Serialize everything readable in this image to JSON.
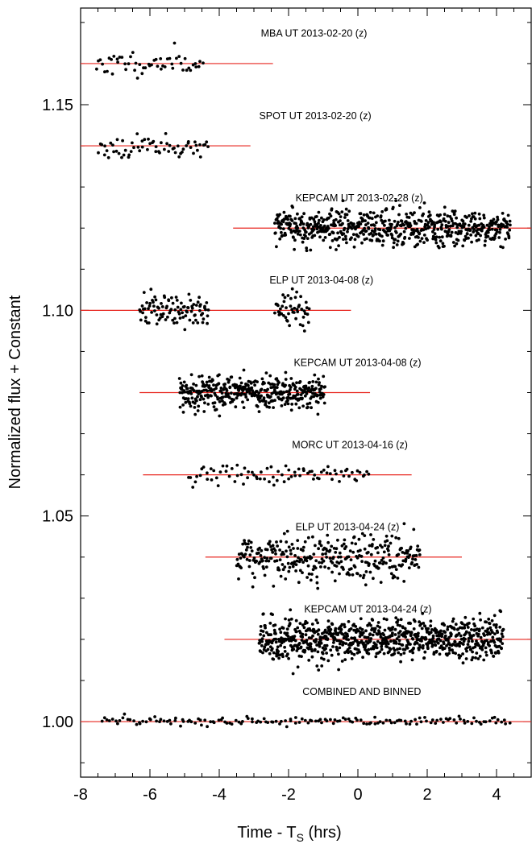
{
  "chart_data": {
    "type": "scatter",
    "xlabel": "Time - T",
    "xlabel_sub": "S",
    "xlabel_suffix": " (hrs)",
    "ylabel": "Normalized flux + Constant",
    "xlim": [
      -8,
      5
    ],
    "ylim": [
      0.9865,
      1.1735
    ],
    "x_ticks": [
      -8,
      -6,
      -4,
      -2,
      0,
      2,
      4
    ],
    "x_tick_labels": [
      "-8",
      "-6",
      "-4",
      "-2",
      "0",
      "2",
      "4"
    ],
    "y_ticks": [
      1.0,
      1.05,
      1.1,
      1.15
    ],
    "y_tick_labels": [
      "1.00",
      "1.05",
      "1.10",
      "1.15"
    ],
    "grid": false,
    "series": [
      {
        "name": "MBA UT 2013-02-20 (z)",
        "baseline": 1.16,
        "line": [
          -8.0,
          -2.45
        ],
        "segments": [
          [
            -7.55,
            -4.45
          ]
        ],
        "n": 55,
        "sigma": 0.0014,
        "seed": 11,
        "label_x": -2.8,
        "label_y": 1.1665
      },
      {
        "name": "SPOT UT 2013-02-20 (z)",
        "baseline": 1.14,
        "line": [
          -8.0,
          -3.1
        ],
        "segments": [
          [
            -7.5,
            -4.3
          ]
        ],
        "n": 65,
        "sigma": 0.0013,
        "seed": 23,
        "label_x": -2.85,
        "label_y": 1.1465
      },
      {
        "name": "KEPCAM UT 2013-02-28 (z)",
        "baseline": 1.12,
        "line": [
          -3.6,
          5.0
        ],
        "segments": [
          [
            -2.4,
            4.4
          ]
        ],
        "n": 650,
        "sigma": 0.0022,
        "seed": 37,
        "label_x": -1.8,
        "label_y": 1.1265
      },
      {
        "name": "ELP UT 2013-04-08 (z)",
        "baseline": 1.1,
        "line": [
          -8.0,
          -0.2
        ],
        "segments": [
          [
            -6.3,
            -4.3
          ],
          [
            -2.4,
            -1.4
          ]
        ],
        "n": 150,
        "sigma": 0.002,
        "seed": 41,
        "label_x": -2.55,
        "label_y": 1.1065
      },
      {
        "name": "KEPCAM UT 2013-04-08 (z)",
        "baseline": 1.08,
        "line": [
          -6.3,
          0.35
        ],
        "segments": [
          [
            -5.15,
            -0.95
          ]
        ],
        "n": 420,
        "sigma": 0.002,
        "seed": 53,
        "label_x": -1.85,
        "label_y": 1.0865
      },
      {
        "name": "MORC UT 2013-04-16 (z)",
        "baseline": 1.06,
        "line": [
          -6.2,
          1.55
        ],
        "segments": [
          [
            -4.9,
            0.35
          ]
        ],
        "n": 85,
        "sigma": 0.0013,
        "seed": 67,
        "label_x": -1.9,
        "label_y": 1.0665
      },
      {
        "name": "ELP UT 2013-04-24 (z)",
        "baseline": 1.04,
        "line": [
          -4.4,
          3.0
        ],
        "segments": [
          [
            -3.5,
            1.8
          ]
        ],
        "n": 340,
        "sigma": 0.0028,
        "seed": 71,
        "label_x": -1.8,
        "label_y": 1.0465
      },
      {
        "name": "KEPCAM UT 2013-04-24 (z)",
        "baseline": 1.02,
        "line": [
          -3.85,
          5.0
        ],
        "segments": [
          [
            -2.85,
            4.2
          ]
        ],
        "n": 850,
        "sigma": 0.0025,
        "seed": 83,
        "label_x": -1.55,
        "label_y": 1.0265
      },
      {
        "name": "COMBINED AND BINNED",
        "baseline": 1.0,
        "line": [
          -8.0,
          5.0
        ],
        "segments": [
          [
            -7.4,
            4.4
          ]
        ],
        "n": 160,
        "sigma": 0.0006,
        "seed": 97,
        "label_x": -1.6,
        "label_y": 1.0065
      }
    ]
  }
}
